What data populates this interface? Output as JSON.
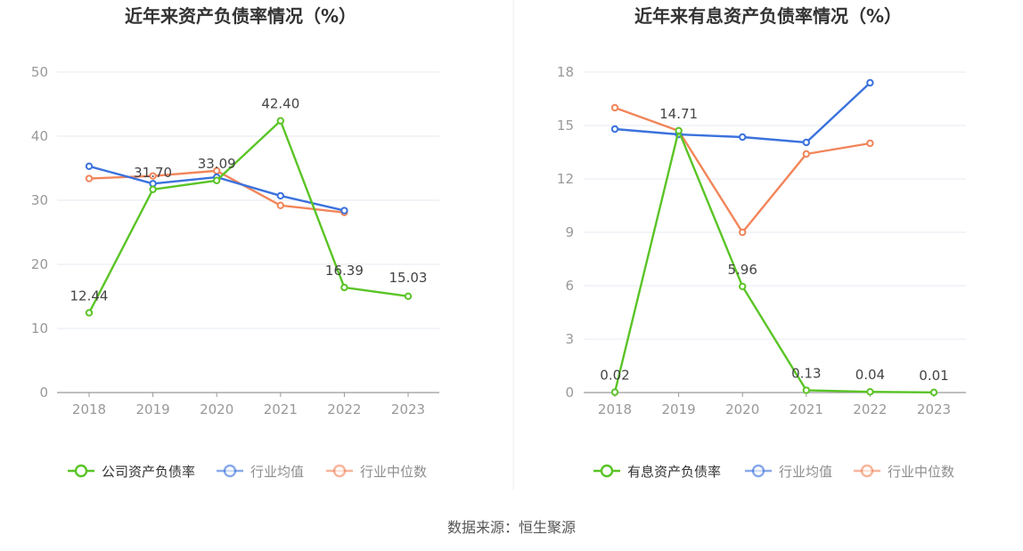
{
  "source": "数据来源：恒生聚源",
  "colors": {
    "company": "#5ac426",
    "average": "#3b72dd",
    "median": "#f2855a",
    "grid": "#e6e9f2",
    "axis": "#999999"
  },
  "chart_data": [
    {
      "type": "line",
      "title": "近年来资产负债率情况（%）",
      "categories": [
        "2018",
        "2019",
        "2020",
        "2021",
        "2022",
        "2023"
      ],
      "ylim": [
        0,
        50
      ],
      "yticks": [
        0,
        10,
        20,
        30,
        40,
        50
      ],
      "grid": true,
      "legend_position": "bottom",
      "series": [
        {
          "name": "公司资产负债率",
          "color": "#5ac426",
          "values": [
            12.44,
            31.7,
            33.09,
            42.4,
            16.39,
            15.03
          ],
          "labels": [
            "12.44",
            "31.70",
            "33.09",
            "42.40",
            "16.39",
            "15.03"
          ]
        },
        {
          "name": "行业均值",
          "color": "#3b72dd",
          "values": [
            35.3,
            32.6,
            33.6,
            30.7,
            28.4,
            null
          ]
        },
        {
          "name": "行业中位数",
          "color": "#f2855a",
          "values": [
            33.4,
            33.8,
            34.6,
            29.2,
            28.1,
            null
          ]
        }
      ]
    },
    {
      "type": "line",
      "title": "近年来有息资产负债率情况（%）",
      "categories": [
        "2018",
        "2019",
        "2020",
        "2021",
        "2022",
        "2023"
      ],
      "ylim": [
        0,
        18
      ],
      "yticks": [
        0,
        3,
        6,
        9,
        12,
        15,
        18
      ],
      "grid": true,
      "legend_position": "bottom",
      "series": [
        {
          "name": "有息资产负债率",
          "color": "#5ac426",
          "values": [
            0.02,
            14.71,
            5.96,
            0.13,
            0.04,
            0.01
          ],
          "labels": [
            "0.02",
            "14.71",
            "5.96",
            "0.13",
            "0.04",
            "0.01"
          ]
        },
        {
          "name": "行业均值",
          "color": "#3b72dd",
          "values": [
            14.8,
            14.5,
            14.35,
            14.05,
            17.4,
            null
          ]
        },
        {
          "name": "行业中位数",
          "color": "#f2855a",
          "values": [
            16.0,
            14.7,
            9.0,
            13.4,
            14.0,
            null
          ]
        }
      ]
    }
  ]
}
